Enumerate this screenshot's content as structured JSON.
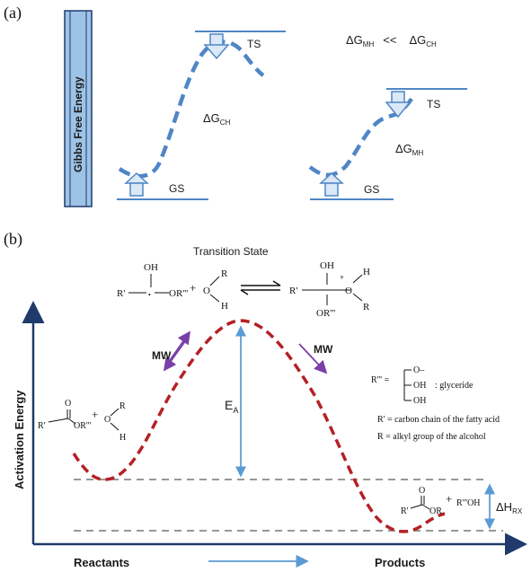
{
  "panel_a": {
    "label": "(a)",
    "y_axis_label": "Gibbs  Free Energy",
    "comparison": {
      "left": "ΔG",
      "left_sub": "MH",
      "op": "<<",
      "right": "ΔG",
      "right_sub": "CH"
    },
    "left_diagram": {
      "ts": "TS",
      "gs": "GS",
      "dg": "ΔG",
      "dg_sub": "CH"
    },
    "right_diagram": {
      "ts": "TS",
      "gs": "GS",
      "dg": "ΔG",
      "dg_sub": "MH"
    }
  },
  "panel_b": {
    "label": "(b)",
    "transition_state_title": "Transition State",
    "y_axis_label": "Activation  Energy",
    "x_left": "Reactants",
    "x_right": "Products",
    "ea": "E",
    "ea_sub": "A",
    "dh": "ΔH",
    "dh_sub": "RX",
    "mw_left": "MW",
    "mw_right": "MW",
    "legend": {
      "r3": "R''' =",
      "oh1": "O–",
      "oh2": "OH",
      "oh3": "OH",
      "glyceride": ": glyceride",
      "r1": "R' = carbon chain of the fatty acid",
      "r": "R  = alkyl group of the alcohol"
    },
    "reaction": {
      "oh": "OH",
      "r_prime": "R'",
      "or3": "OR'''",
      "plus": "+",
      "o": "O",
      "r": "R",
      "h": "H",
      "ts_oh": "OH",
      "ts_plus": "+",
      "ts_h": "H",
      "ts_r": "R",
      "ts_o": "O",
      "ts_rprime": "R'",
      "ts_or3": "OR'''"
    },
    "reactant_struct": {
      "o": "O",
      "r_prime": "R'",
      "or3": "OR'''",
      "plus": "+",
      "o2": "O",
      "r": "R",
      "h": "H"
    },
    "product_struct": {
      "o": "O",
      "r_prime": "R'",
      "or": "OR",
      "plus": "+",
      "r3oh": "R'''OH"
    }
  },
  "colors": {
    "blue_dash": "#4f86c6",
    "red_dash": "#b52025",
    "axis_navy": "#1f3a6b",
    "arrow_blue": "#5b9bd5",
    "purple": "#7a3fa8",
    "bar_fill": "#9dc3e6"
  }
}
